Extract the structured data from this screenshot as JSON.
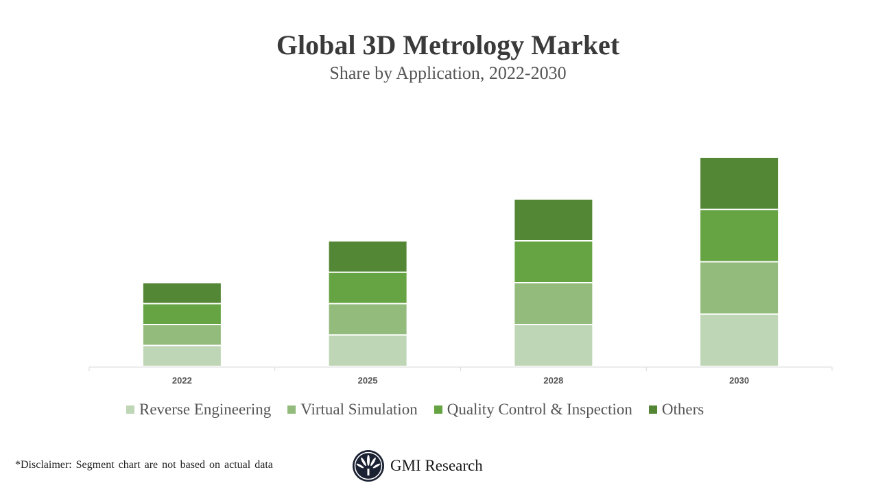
{
  "chart_data": {
    "type": "bar",
    "stacked": true,
    "title": "Global 3D Metrology Market",
    "subtitle": "Share by Application, 2022-2030",
    "categories": [
      "2022",
      "2025",
      "2028",
      "2030"
    ],
    "series": [
      {
        "name": "Reverse Engineering",
        "color": "#bed6b5",
        "values": [
          2,
          3,
          4,
          5
        ]
      },
      {
        "name": "Virtual Simulation",
        "color": "#92bb7c",
        "values": [
          2,
          3,
          4,
          5
        ]
      },
      {
        "name": "Quality Control & Inspection",
        "color": "#66a342",
        "values": [
          2,
          3,
          4,
          5
        ]
      },
      {
        "name": "Others",
        "color": "#548735",
        "values": [
          2,
          3,
          4,
          5
        ]
      }
    ],
    "ylim": [
      0,
      20
    ],
    "y_axis_visible": false,
    "grid": false,
    "legend_position": "bottom"
  },
  "footer": {
    "disclaimer": "*Disclaimer:   Segment chart are not based on actual data",
    "brand": "GMI Research"
  }
}
